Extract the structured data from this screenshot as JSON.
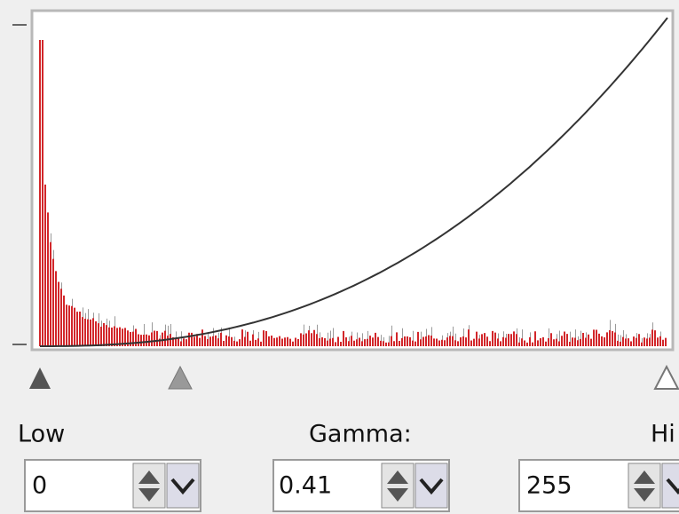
{
  "labels": {
    "low": "Low",
    "gamma": "Gamma:",
    "high": "Hi"
  },
  "inputs": {
    "low": "0",
    "gamma": "0.41",
    "high": "255"
  }
}
